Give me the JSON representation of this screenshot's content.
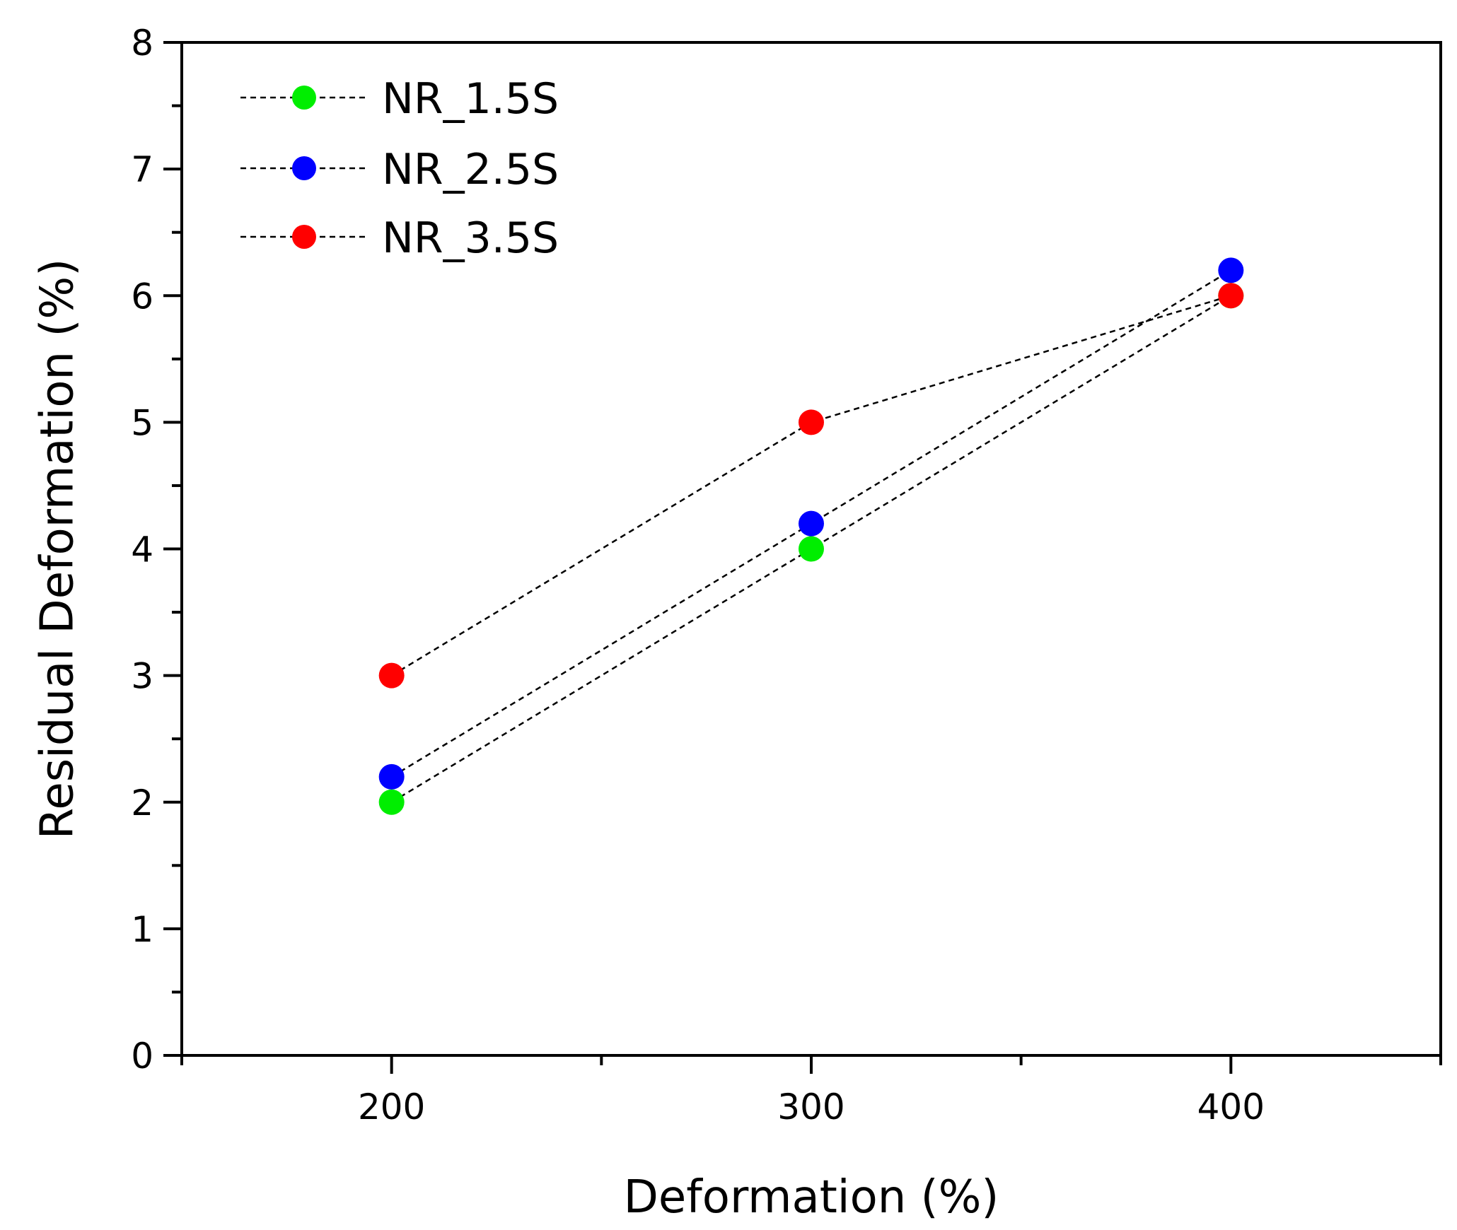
{
  "chart_data": {
    "type": "line",
    "title": "",
    "xlabel": "Deformation (%)",
    "ylabel": "Residual Deformation (%)",
    "xlim": [
      150,
      450
    ],
    "ylim": [
      0,
      8
    ],
    "x_ticks": [
      200,
      300,
      400
    ],
    "y_ticks": [
      0,
      1,
      2,
      3,
      4,
      5,
      6,
      7,
      8
    ],
    "x_minor_ticks": [
      150,
      250,
      350,
      450
    ],
    "y_minor_ticks": [
      0.5,
      1.5,
      2.5,
      3.5,
      4.5,
      5.5,
      6.5,
      7.5
    ],
    "grid": false,
    "legend_position": "top-left",
    "line_style": "dashed",
    "line_color": "#000000",
    "x": [
      200,
      300,
      400
    ],
    "series": [
      {
        "name": "NR_1.5S",
        "color": "#00ee00",
        "values": [
          2.0,
          4.0,
          6.0
        ]
      },
      {
        "name": "NR_2.5S",
        "color": "#0000ff",
        "values": [
          2.2,
          4.2,
          6.2
        ]
      },
      {
        "name": "NR_3.5S",
        "color": "#ff0000",
        "values": [
          3.0,
          5.0,
          6.0
        ]
      }
    ]
  }
}
